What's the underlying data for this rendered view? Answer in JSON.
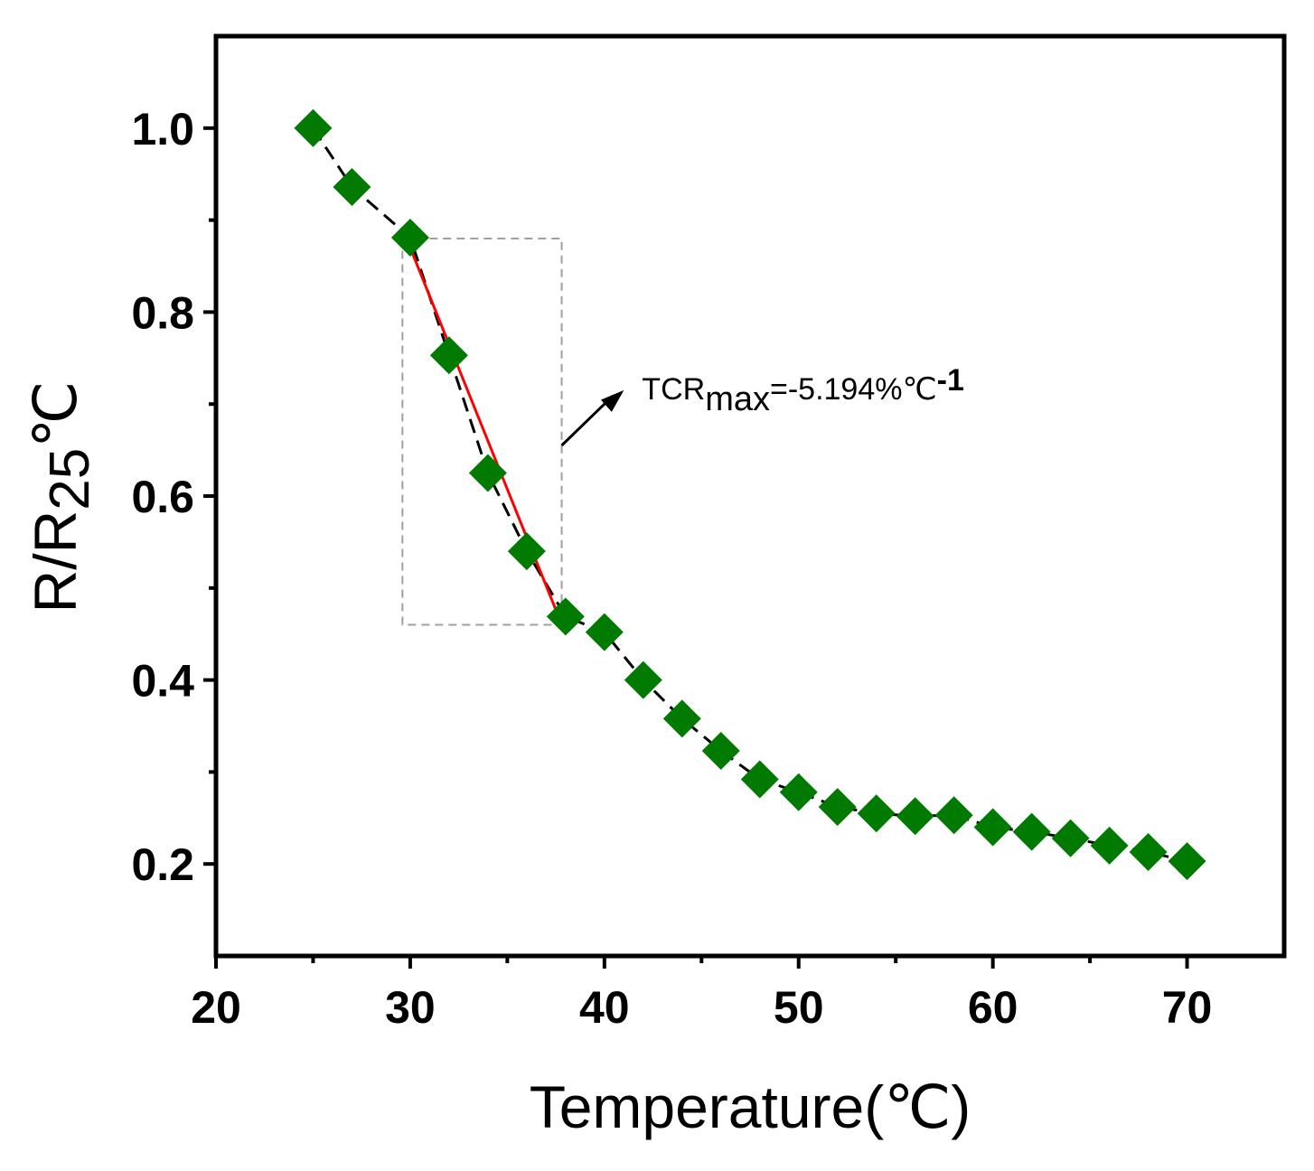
{
  "chart_data": {
    "type": "scatter",
    "title": "",
    "xlabel": "Temperature(℃)",
    "ylabel": {
      "main": "R/R",
      "sub": "25",
      "tail": "℃"
    },
    "xlim": [
      20,
      75
    ],
    "ylim": [
      0.1,
      1.1
    ],
    "x_ticks": [
      20,
      30,
      40,
      50,
      60,
      70
    ],
    "x_tick_labels": [
      "20",
      "30",
      "40",
      "50",
      "60",
      "70"
    ],
    "y_ticks": [
      0.2,
      0.4,
      0.6,
      0.8,
      1.0
    ],
    "y_tick_labels": [
      "0.2",
      "0.4",
      "0.6",
      "0.8",
      "1.0"
    ],
    "grid": false,
    "series": [
      {
        "name": "R/R25℃",
        "marker": "diamond",
        "color": "#007a00",
        "line_color": "#000000",
        "line_style": "dashed",
        "x": [
          25,
          27,
          30,
          32,
          34,
          36,
          38,
          40,
          42,
          44,
          46,
          48,
          50,
          52,
          54,
          56,
          58,
          60,
          62,
          64,
          66,
          68,
          70
        ],
        "y": [
          1.0,
          0.936,
          0.881,
          0.753,
          0.625,
          0.54,
          0.469,
          0.452,
          0.4,
          0.358,
          0.323,
          0.292,
          0.278,
          0.262,
          0.255,
          0.252,
          0.253,
          0.24,
          0.235,
          0.228,
          0.22,
          0.213,
          0.203
        ]
      }
    ],
    "fit_line": {
      "color": "#ff0000",
      "x": [
        30,
        38
      ],
      "y": [
        0.87,
        0.45
      ]
    },
    "highlight_box": {
      "x": [
        29.6,
        37.8
      ],
      "y": [
        0.46,
        0.88
      ],
      "color": "#a0a0a0"
    },
    "annotation": {
      "prefix": "TCR",
      "subscript": "max",
      "value": "=-5.194%℃",
      "superscript": "-1",
      "arrow_from": [
        37.8,
        0.655
      ],
      "arrow_to": [
        41.0,
        0.715
      ]
    }
  }
}
